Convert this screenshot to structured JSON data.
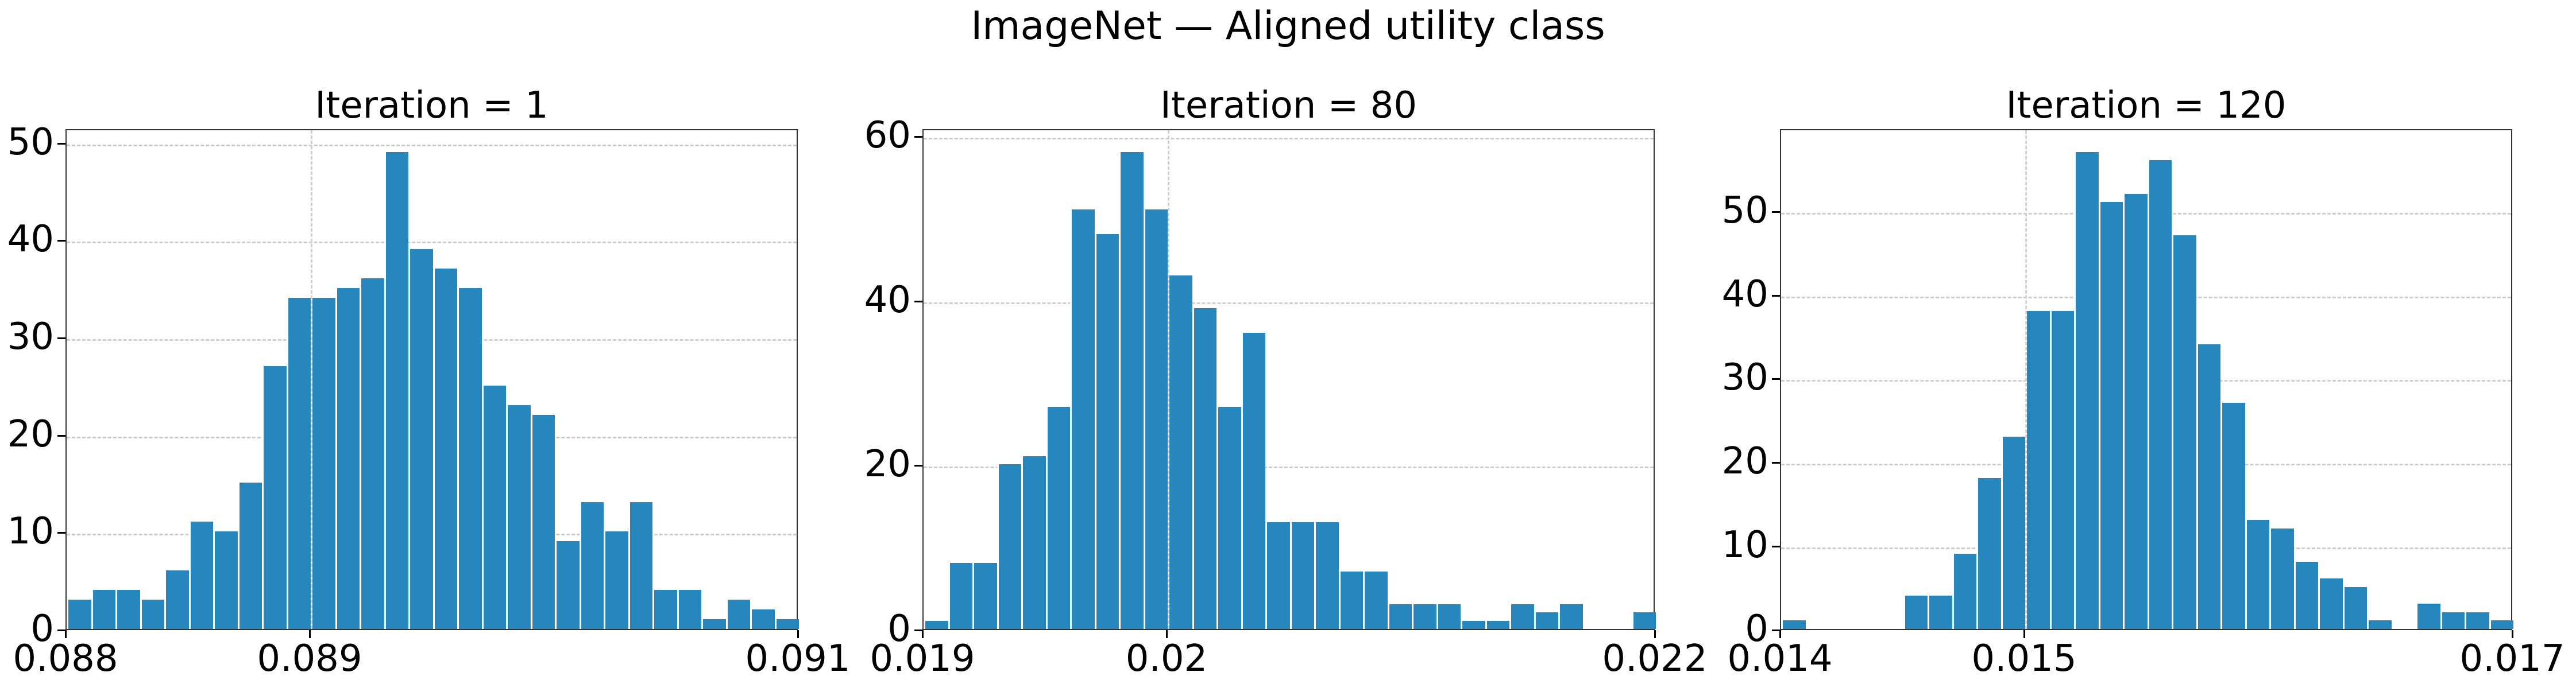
{
  "figure": {
    "title": "ImageNet — Aligned utility class",
    "bar_color": "#2787bc",
    "grid_color": "#cfcfcf"
  },
  "chart_data": [
    {
      "type": "bar",
      "subtype": "histogram",
      "title": "Iteration = 1",
      "xlabel": "",
      "ylabel": "",
      "xlim": [
        0.088,
        0.091
      ],
      "ylim": [
        0,
        51.45
      ],
      "xticks": [
        "0.088",
        "0.089",
        "0.091"
      ],
      "xtick_values": [
        0.088,
        0.089,
        0.091
      ],
      "yticks": [
        0,
        10,
        20,
        30,
        40,
        50
      ],
      "bins": 30,
      "grid": true,
      "values": [
        3,
        4,
        4,
        3,
        6,
        11,
        10,
        15,
        27,
        34,
        34,
        35,
        36,
        49,
        39,
        37,
        35,
        25,
        23,
        22,
        9,
        13,
        10,
        13,
        4,
        4,
        1,
        3,
        2,
        1
      ]
    },
    {
      "type": "bar",
      "subtype": "histogram",
      "title": "Iteration = 80",
      "xlabel": "",
      "ylabel": "",
      "xlim": [
        0.019,
        0.022
      ],
      "ylim": [
        0,
        60.9
      ],
      "xticks": [
        "0.019",
        "0.02",
        "0.022"
      ],
      "xtick_values": [
        0.019,
        0.02,
        0.022
      ],
      "yticks": [
        0,
        20,
        40,
        60
      ],
      "bins": 30,
      "grid": true,
      "values": [
        1,
        8,
        8,
        20,
        21,
        27,
        51,
        48,
        58,
        51,
        43,
        39,
        27,
        36,
        13,
        13,
        13,
        7,
        7,
        3,
        3,
        3,
        1,
        1,
        3,
        2,
        3,
        0,
        0,
        2
      ]
    },
    {
      "type": "bar",
      "subtype": "histogram",
      "title": "Iteration = 120",
      "xlabel": "",
      "ylabel": "",
      "xlim": [
        0.014,
        0.017
      ],
      "ylim": [
        0,
        59.85
      ],
      "xticks": [
        "0.014",
        "0.015",
        "0.017"
      ],
      "xtick_values": [
        0.014,
        0.015,
        0.017
      ],
      "yticks": [
        0,
        10,
        20,
        30,
        40,
        50
      ],
      "bins": 30,
      "grid": true,
      "values": [
        1,
        0,
        0,
        0,
        0,
        4,
        4,
        9,
        18,
        23,
        38,
        38,
        57,
        51,
        52,
        56,
        47,
        34,
        27,
        13,
        12,
        8,
        6,
        5,
        1,
        0,
        3,
        2,
        2,
        1
      ]
    }
  ]
}
